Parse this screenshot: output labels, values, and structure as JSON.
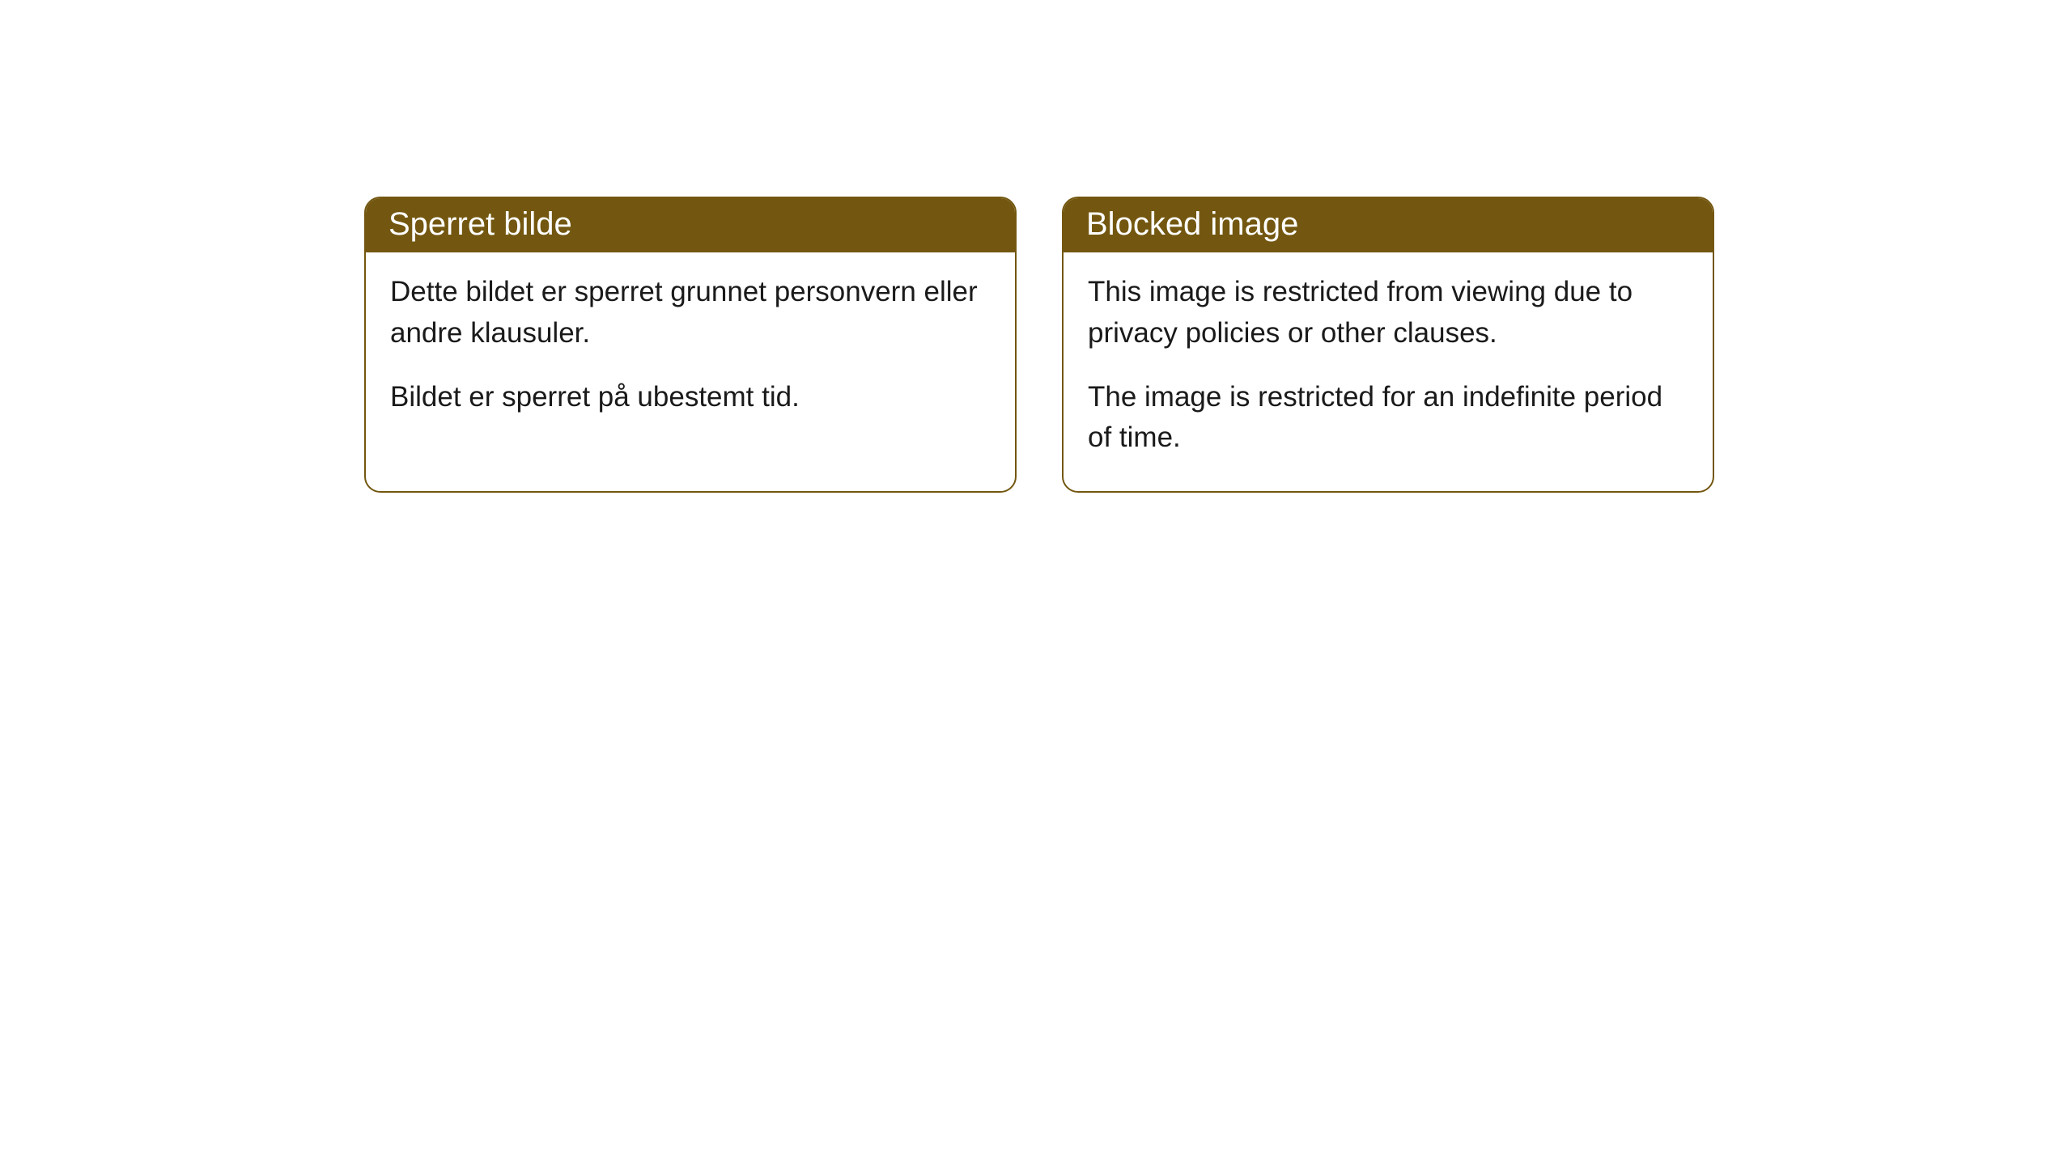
{
  "cards": [
    {
      "title": "Sperret bilde",
      "paragraph1": "Dette bildet er sperret grunnet personvern eller andre klausuler.",
      "paragraph2": "Bildet er sperret på ubestemt tid."
    },
    {
      "title": "Blocked image",
      "paragraph1": "This image is restricted from viewing due to privacy policies or other clauses.",
      "paragraph2": "The image is restricted for an indefinite period of time."
    }
  ],
  "style": {
    "header_color": "#735710",
    "border_color": "#735710",
    "background_color": "#ffffff",
    "text_color": "#1a1a1a",
    "border_radius": 20
  }
}
